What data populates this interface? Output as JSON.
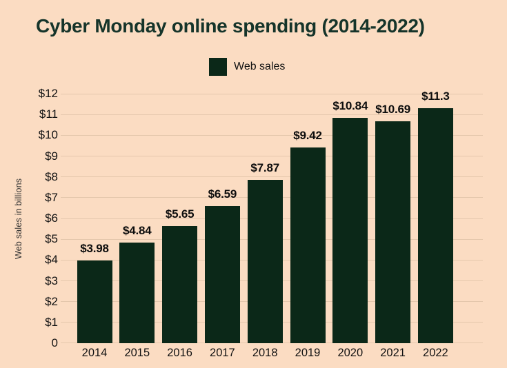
{
  "title": "Cyber Monday online spending (2014-2022)",
  "legend": {
    "label": "Web sales"
  },
  "y_axis_title": "Web sales in billions",
  "colors": {
    "background": "#fbdcc2",
    "bar": "#0b2818",
    "title_text": "#15342a",
    "label_text": "#121212",
    "gridline": "#e4c7ac",
    "axis_title_text": "#2f2f2f"
  },
  "chart_data": {
    "type": "bar",
    "title": "Cyber Monday online spending (2014-2022)",
    "categories": [
      "2014",
      "2015",
      "2016",
      "2017",
      "2018",
      "2019",
      "2020",
      "2021",
      "2022"
    ],
    "series": [
      {
        "name": "Web sales",
        "values": [
          3.98,
          4.84,
          5.65,
          6.59,
          7.87,
          9.42,
          10.84,
          10.69,
          11.3
        ]
      }
    ],
    "data_labels": [
      "$3.98",
      "$4.84",
      "$5.65",
      "$6.59",
      "$7.87",
      "$9.42",
      "$10.84",
      "$10.69",
      "$11.3"
    ],
    "xlabel": "",
    "ylabel": "Web sales in billions",
    "ylim": [
      0,
      12
    ],
    "ytick_labels": [
      "0",
      "$1",
      "$2",
      "$3",
      "$4",
      "$5",
      "$6",
      "$7",
      "$8",
      "$9",
      "$10",
      "$11",
      "$12"
    ],
    "grid": true,
    "legend_position": "top-center"
  }
}
